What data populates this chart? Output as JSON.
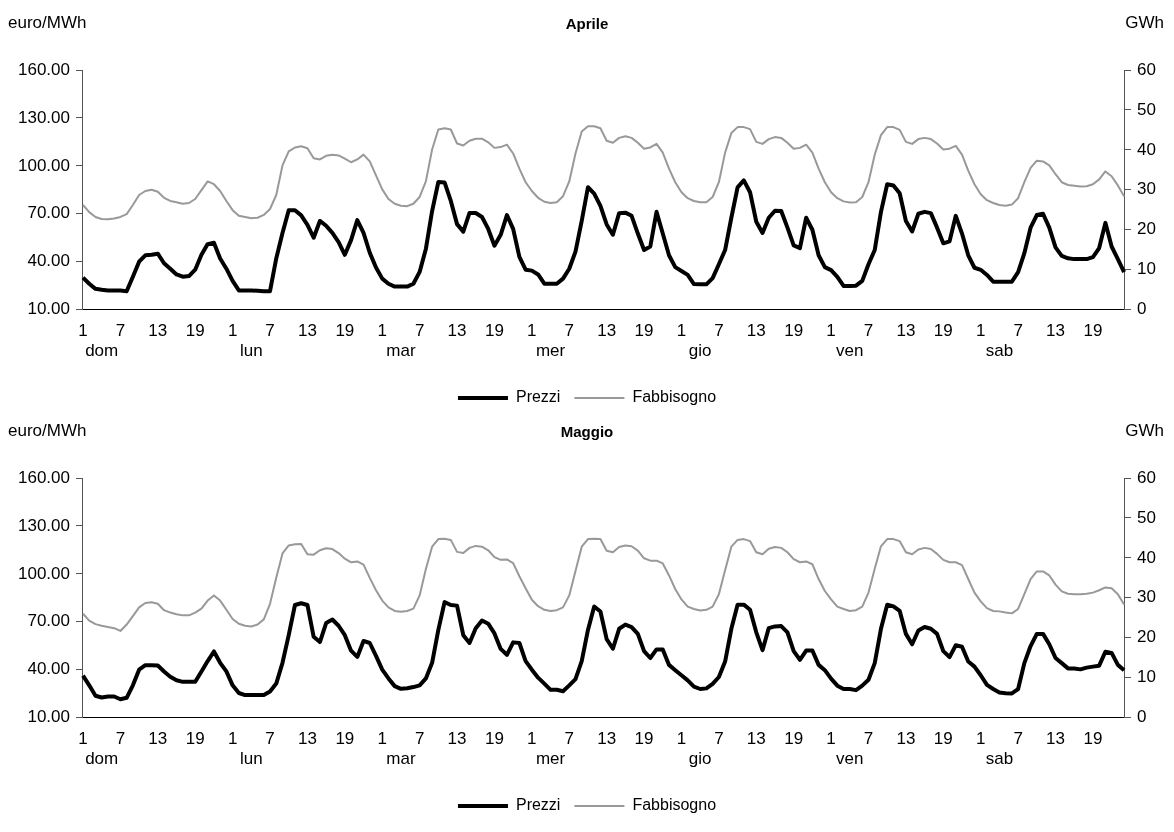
{
  "chart_data": [
    {
      "type": "line",
      "title": "Aprile",
      "ylabel": "euro/MWh",
      "y2label": "GWh",
      "legend": "bottom",
      "marker": "none",
      "grid": false,
      "categories": [
        "1",
        null,
        null,
        null,
        null,
        null,
        "7",
        null,
        null,
        null,
        null,
        null,
        "13",
        null,
        null,
        null,
        null,
        null,
        "19",
        null,
        null,
        null,
        null,
        null,
        "1",
        null,
        null,
        null,
        null,
        null,
        "7",
        null,
        null,
        null,
        null,
        null,
        "13",
        null,
        null,
        null,
        null,
        null,
        "19",
        null,
        null,
        null,
        null,
        null,
        "1",
        null,
        null,
        null,
        null,
        null,
        "7",
        null,
        null,
        null,
        null,
        null,
        "13",
        null,
        null,
        null,
        null,
        null,
        "19",
        null,
        null,
        null,
        null,
        null,
        "1",
        null,
        null,
        null,
        null,
        null,
        "7",
        null,
        null,
        null,
        null,
        null,
        "13",
        null,
        null,
        null,
        null,
        null,
        "19",
        null,
        null,
        null,
        null,
        null,
        "1",
        null,
        null,
        null,
        null,
        null,
        "7",
        null,
        null,
        null,
        null,
        null,
        "13",
        null,
        null,
        null,
        null,
        null,
        "19",
        null,
        null,
        null,
        null,
        null,
        "1",
        null,
        null,
        null,
        null,
        null,
        "7",
        null,
        null,
        null,
        null,
        null,
        "13",
        null,
        null,
        null,
        null,
        null,
        "19",
        null,
        null,
        null,
        null,
        null,
        "1",
        null,
        null,
        null,
        null,
        null,
        "7",
        null,
        null,
        null,
        null,
        null,
        "13",
        null,
        null,
        null,
        null,
        null,
        "19",
        null,
        null,
        null,
        null,
        null
      ],
      "annotations": [
        "dom",
        "lun",
        "mar",
        "mer",
        "gio",
        "ven",
        "sab"
      ],
      "ylim": [
        10,
        160
      ],
      "yticks": [
        {
          "value": 10,
          "label": "10.00"
        },
        {
          "value": 40,
          "label": "40.00"
        },
        {
          "value": 70,
          "label": "70.00"
        },
        {
          "value": 100,
          "label": "100.00"
        },
        {
          "value": 130,
          "label": "130.00"
        },
        {
          "value": 160,
          "label": "160.00"
        }
      ],
      "y2lim": [
        0,
        60
      ],
      "y2ticks": [
        0,
        10,
        20,
        30,
        40,
        50,
        60
      ],
      "series": [
        {
          "name": "Prezzi",
          "color": "#000000",
          "values": [
            30,
            26.2,
            23,
            22.4,
            22,
            22,
            22,
            21.5,
            30.6,
            40,
            44,
            44.3,
            45,
            39,
            35.6,
            32,
            30.6,
            31,
            35,
            44.3,
            51,
            51.8,
            42,
            35.6,
            28,
            22,
            22,
            22,
            21.8,
            21.5,
            21.5,
            42,
            58,
            72.2,
            72.2,
            69,
            63,
            55,
            65.5,
            62.5,
            58,
            52.3,
            44.3,
            53.5,
            66,
            58,
            45.6,
            36.4,
            29.4,
            26.2,
            24.4,
            24.4,
            24.4,
            26.2,
            33.6,
            48,
            71.7,
            89.9,
            89.6,
            78,
            63.5,
            58.8,
            70.5,
            70.5,
            68,
            60.5,
            50,
            56.8,
            69.2,
            60.5,
            43,
            35,
            34.4,
            32,
            26.2,
            26.2,
            26.2,
            29.4,
            35.6,
            46.3,
            65.5,
            86.6,
            82.6,
            74.9,
            63.3,
            56.9,
            70.4,
            70.7,
            68.7,
            57.6,
            47.3,
            49.5,
            71.2,
            57.6,
            44,
            36.6,
            34.2,
            31.7,
            26,
            25.8,
            25.8,
            29.7,
            38.4,
            47.3,
            67.5,
            86.5,
            90.9,
            83.5,
            65,
            58,
            67.5,
            71.9,
            71.7,
            61.3,
            50.2,
            48.5,
            67.5,
            60,
            44,
            36.6,
            34.7,
            30.5,
            24.8,
            24.8,
            25,
            28,
            38.4,
            47.3,
            71.2,
            88.5,
            87.7,
            82.8,
            65.5,
            58.9,
            70,
            71.2,
            70.4,
            61.3,
            51.5,
            52.7,
            68.7,
            57.6,
            44,
            36.2,
            34.9,
            31.7,
            27.5,
            27.5,
            27.5,
            27.5,
            33.4,
            45.3,
            61.3,
            69.2,
            70,
            61.3,
            49,
            43.6,
            42.1,
            41.6,
            41.6,
            41.6,
            42.8,
            48.5,
            64.3,
            49.5,
            41.6,
            33.4
          ]
        },
        {
          "name": "Fabbisogno",
          "color": "#999999",
          "axis": "y2",
          "values": [
            26.2,
            24.4,
            23.2,
            22.7,
            22.6,
            22.8,
            23.2,
            23.9,
            26.2,
            28.7,
            29.7,
            30,
            29.5,
            28,
            27.2,
            26.9,
            26.5,
            26.7,
            27.7,
            29.9,
            32.1,
            31.4,
            29.7,
            27.2,
            24.9,
            23.5,
            23.2,
            22.9,
            23,
            23.7,
            25.2,
            28.7,
            36.1,
            39.6,
            40.6,
            40.9,
            40.4,
            37.9,
            37.6,
            38.5,
            38.8,
            38.6,
            37.8,
            36.9,
            37.6,
            38.8,
            37.1,
            33.6,
            30.1,
            27.7,
            26.5,
            26,
            25.9,
            26.5,
            28.2,
            32.1,
            40.1,
            45.1,
            45.4,
            45.1,
            41.6,
            41.1,
            42.3,
            42.8,
            42.8,
            41.9,
            40.5,
            40.7,
            41.3,
            39.1,
            35.3,
            31.9,
            29.7,
            28,
            27,
            26.7,
            26.9,
            28.4,
            32.1,
            39.1,
            44.6,
            45.9,
            45.9,
            45.4,
            42.3,
            41.8,
            43,
            43.4,
            43,
            41.8,
            40.3,
            40.6,
            41.5,
            39.3,
            35.3,
            31.9,
            29.4,
            27.9,
            27.2,
            26.9,
            26.9,
            28.2,
            31.9,
            39.3,
            44.2,
            45.7,
            45.7,
            45.2,
            42,
            41.5,
            42.7,
            43.2,
            43,
            41.8,
            40.3,
            40.5,
            41.3,
            39.3,
            35.3,
            31.9,
            29.4,
            27.9,
            27.1,
            26.8,
            26.9,
            28.2,
            31.9,
            38.8,
            43.7,
            45.7,
            45.7,
            45,
            42,
            41.5,
            42.7,
            43,
            42.7,
            41.6,
            40.1,
            40.3,
            41,
            38.8,
            34.8,
            31.4,
            28.9,
            27.4,
            26.7,
            26.2,
            26,
            26.3,
            27.9,
            31.9,
            35.5,
            37.3,
            37.1,
            36.1,
            33.9,
            31.9,
            31.2,
            31,
            30.8,
            30.9,
            31.4,
            32.6,
            34.6,
            33.4,
            31.1,
            28.4
          ]
        }
      ]
    },
    {
      "type": "line",
      "title": "Maggio",
      "ylabel": "euro/MWh",
      "y2label": "GWh",
      "legend": "bottom",
      "marker": "none",
      "grid": false,
      "categories": [
        "1",
        null,
        null,
        null,
        null,
        null,
        "7",
        null,
        null,
        null,
        null,
        null,
        "13",
        null,
        null,
        null,
        null,
        null,
        "19",
        null,
        null,
        null,
        null,
        null,
        "1",
        null,
        null,
        null,
        null,
        null,
        "7",
        null,
        null,
        null,
        null,
        null,
        "13",
        null,
        null,
        null,
        null,
        null,
        "19",
        null,
        null,
        null,
        null,
        null,
        "1",
        null,
        null,
        null,
        null,
        null,
        "7",
        null,
        null,
        null,
        null,
        null,
        "13",
        null,
        null,
        null,
        null,
        null,
        "19",
        null,
        null,
        null,
        null,
        null,
        "1",
        null,
        null,
        null,
        null,
        null,
        "7",
        null,
        null,
        null,
        null,
        null,
        "13",
        null,
        null,
        null,
        null,
        null,
        "19",
        null,
        null,
        null,
        null,
        null,
        "1",
        null,
        null,
        null,
        null,
        null,
        "7",
        null,
        null,
        null,
        null,
        null,
        "13",
        null,
        null,
        null,
        null,
        null,
        "19",
        null,
        null,
        null,
        null,
        null,
        "1",
        null,
        null,
        null,
        null,
        null,
        "7",
        null,
        null,
        null,
        null,
        null,
        "13",
        null,
        null,
        null,
        null,
        null,
        "19",
        null,
        null,
        null,
        null,
        null,
        "1",
        null,
        null,
        null,
        null,
        null,
        "7",
        null,
        null,
        null,
        null,
        null,
        "13",
        null,
        null,
        null,
        null,
        null,
        "19",
        null,
        null,
        null,
        null,
        null
      ],
      "annotations": [
        "dom",
        "lun",
        "mar",
        "mer",
        "gio",
        "ven",
        "sab"
      ],
      "ylim": [
        10,
        160
      ],
      "yticks": [
        {
          "value": 10,
          "label": "10.00"
        },
        {
          "value": 40,
          "label": "40.00"
        },
        {
          "value": 70,
          "label": "70.00"
        },
        {
          "value": 100,
          "label": "100.00"
        },
        {
          "value": 130,
          "label": "130.00"
        },
        {
          "value": 160,
          "label": "160.00"
        }
      ],
      "y2lim": [
        0,
        60
      ],
      "y2ticks": [
        0,
        10,
        20,
        30,
        40,
        50,
        60
      ],
      "series": [
        {
          "name": "Prezzi",
          "color": "#000000",
          "values": [
            36.3,
            30.2,
            23.7,
            22.6,
            23.2,
            23.2,
            21.5,
            22.4,
            30.2,
            40,
            42.8,
            42.8,
            42.6,
            38.9,
            35.6,
            33.4,
            32.4,
            32.4,
            32.4,
            38.9,
            45.4,
            51.4,
            44.3,
            38.9,
            30.2,
            25.4,
            24.1,
            24.1,
            24.1,
            24.1,
            26.3,
            31.3,
            44.3,
            61.6,
            80.5,
            81.6,
            80.5,
            60.6,
            57.3,
            69.2,
            71.4,
            67.5,
            61.6,
            51.9,
            48,
            58,
            56.7,
            48.6,
            40,
            34.5,
            29.7,
            28,
            28.4,
            29.1,
            30.2,
            34.5,
            44.3,
            64.9,
            82.3,
            80.5,
            80.1,
            61.6,
            56.7,
            66,
            70.8,
            68.8,
            62.7,
            53,
            49.3,
            57.1,
            56.7,
            45.4,
            40,
            35,
            31.3,
            27.4,
            27.4,
            26.5,
            30.2,
            34.1,
            45.4,
            64.9,
            79.6,
            76.4,
            59.1,
            53.1,
            65.6,
            68.2,
            66.7,
            62.4,
            51.6,
            47.3,
            52.7,
            52.7,
            43,
            39.7,
            36.5,
            33.3,
            29.4,
            27.9,
            28.3,
            31.1,
            35.4,
            45.1,
            65.6,
            80.7,
            80.7,
            77.5,
            63.4,
            52.2,
            66,
            67.1,
            67.3,
            63.4,
            51.6,
            46.2,
            52,
            52,
            43,
            39.7,
            34.4,
            30,
            27.9,
            27.9,
            27.2,
            30,
            33.7,
            44.1,
            65.6,
            80.7,
            79.6,
            76.8,
            62.4,
            55.9,
            64.5,
            66.7,
            65.6,
            62.4,
            51.6,
            47.9,
            55.3,
            54.4,
            45.1,
            41.9,
            36.5,
            30.5,
            27.9,
            25.7,
            25.3,
            25.1,
            27.9,
            44.1,
            54.8,
            62.4,
            62.4,
            55.9,
            47.3,
            44.1,
            40.8,
            40.8,
            40.2,
            41.3,
            41.9,
            42.5,
            51.2,
            50.5,
            43,
            39.7
          ]
        },
        {
          "name": "Fabbisogno",
          "color": "#999999",
          "axis": "y2",
          "values": [
            26,
            24.3,
            23.4,
            23,
            22.7,
            22.4,
            21.7,
            23.3,
            25.4,
            27.6,
            28.7,
            28.9,
            28.5,
            26.9,
            26.3,
            25.9,
            25.6,
            25.6,
            26.3,
            27.3,
            29.3,
            30.6,
            29.3,
            27,
            24.7,
            23.5,
            23,
            22.8,
            23.3,
            24.6,
            28.5,
            35,
            41.1,
            43.1,
            43.4,
            43.5,
            40.9,
            40.8,
            41.9,
            42.4,
            42.2,
            41.2,
            39.8,
            38.9,
            39.1,
            38.3,
            35,
            31.9,
            29.3,
            27.6,
            26.7,
            26.5,
            26.7,
            27.3,
            30.6,
            37.2,
            42.8,
            44.7,
            44.8,
            44.5,
            41.5,
            41.2,
            42.5,
            43,
            42.8,
            41.9,
            40.2,
            39.5,
            39.6,
            38.7,
            35.4,
            32.4,
            29.5,
            27.9,
            27,
            26.7,
            26.9,
            27.6,
            30.6,
            36.7,
            42.8,
            44.7,
            44.8,
            44.7,
            41.8,
            41.4,
            42.7,
            43.1,
            42.9,
            41.8,
            39.9,
            39.3,
            39.3,
            38.6,
            35.6,
            32.2,
            29.6,
            27.8,
            27.2,
            26.8,
            27,
            27.8,
            30.9,
            36.9,
            42.8,
            44.5,
            44.7,
            44.2,
            41.4,
            40.9,
            42.3,
            42.7,
            42.5,
            41.4,
            39.7,
            38.9,
            39.1,
            38.4,
            34.7,
            31.7,
            29.6,
            27.8,
            27.2,
            26.7,
            26.9,
            27.8,
            31.3,
            37.3,
            42.9,
            44.7,
            44.7,
            44.2,
            41.4,
            40.9,
            42.1,
            42.5,
            42.2,
            41,
            39.5,
            38.9,
            38.9,
            38.2,
            34.7,
            31.3,
            29.1,
            27.4,
            26.7,
            26.6,
            26.3,
            26.1,
            27.2,
            30.9,
            34.7,
            36.6,
            36.6,
            35.6,
            33.3,
            31.6,
            31,
            30.9,
            30.9,
            31,
            31.3,
            31.9,
            32.6,
            32.4,
            30.9,
            28.3
          ]
        }
      ]
    }
  ]
}
